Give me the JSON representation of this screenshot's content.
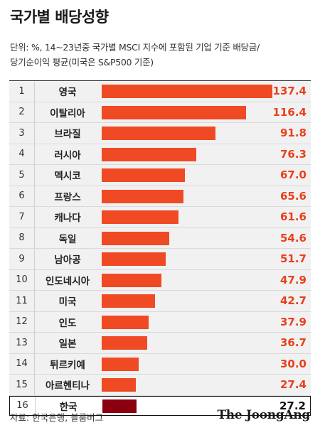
{
  "title": "국가별 배당성향",
  "subtitle_line1": "단위: %, 14~23년중 국가별 MSCI 지수에 포함된 기업 기준 배당금/",
  "subtitle_line2": "당기순이익 평균(미국은 S&P500 기준)",
  "source": "자료: 한국은행, 블룸버그",
  "logo": "The JoongAng",
  "colors": {
    "bar": "#ef4a23",
    "highlight_bar": "#8b0010",
    "value": "#e8401c",
    "highlight_value": "#111111"
  },
  "chart_data": {
    "type": "bar",
    "orientation": "horizontal",
    "ranks": [
      "1",
      "2",
      "3",
      "4",
      "5",
      "6",
      "7",
      "8",
      "9",
      "10",
      "11",
      "12",
      "13",
      "14",
      "15",
      "16"
    ],
    "categories": [
      "영국",
      "이탈리아",
      "브라질",
      "러시아",
      "멕시코",
      "프랑스",
      "캐나다",
      "독일",
      "남아공",
      "인도네시아",
      "미국",
      "인도",
      "일본",
      "튀르키예",
      "아르헨티나",
      "한국"
    ],
    "values": [
      137.4,
      116.4,
      91.8,
      76.3,
      67.0,
      65.6,
      61.6,
      54.6,
      51.7,
      47.9,
      42.7,
      37.9,
      36.7,
      30.0,
      27.4,
      27.2
    ],
    "value_labels": [
      "137.4",
      "116.4",
      "91.8",
      "76.3",
      "67.0",
      "65.6",
      "61.6",
      "54.6",
      "51.7",
      "47.9",
      "42.7",
      "37.9",
      "36.7",
      "30.0",
      "27.4",
      "27.2"
    ],
    "highlight": "한국",
    "xlim": [
      0,
      137.4
    ]
  }
}
